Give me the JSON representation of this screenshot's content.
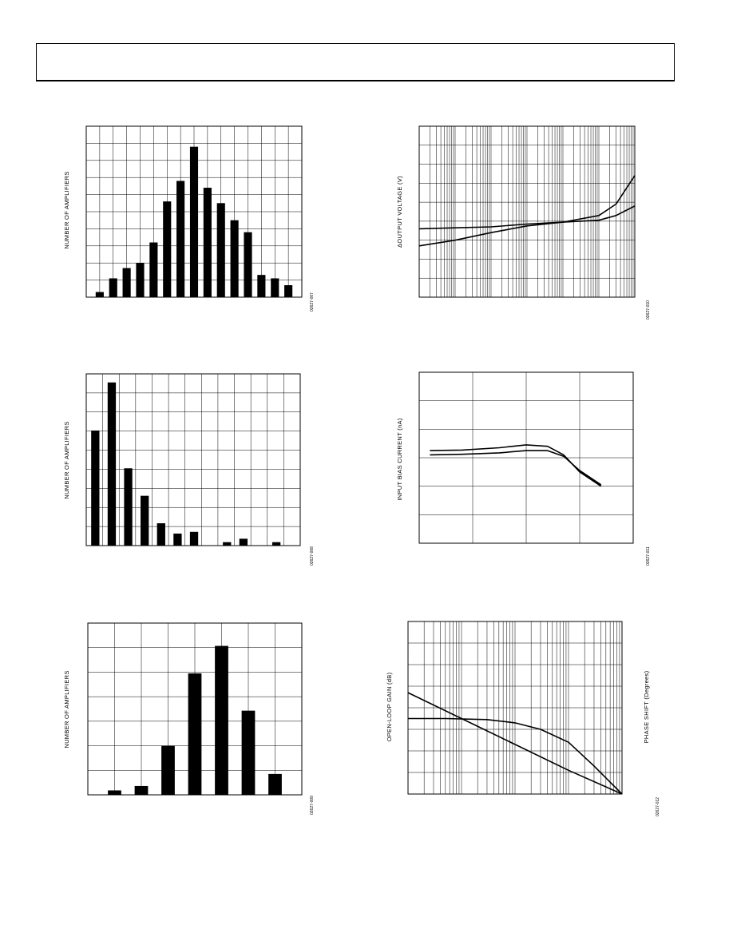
{
  "chart_data": [
    {
      "id": "hist1",
      "type": "bar",
      "ylabel": "NUMBER OF AMPLIFIERS",
      "fig_id": "02627-007",
      "values": [
        3,
        11,
        17,
        20,
        32,
        56,
        68,
        88,
        64,
        55,
        45,
        38,
        13,
        11,
        7
      ],
      "ylim": [
        0,
        100
      ],
      "n_x_grid": 16,
      "n_y_grid": 10
    },
    {
      "id": "hist2",
      "type": "bar",
      "ylabel": "NUMBER OF AMPLIFIERS",
      "fig_id": "02627-008",
      "values": [
        67,
        95,
        45,
        29,
        13,
        7,
        8,
        0,
        2,
        4,
        0,
        2
      ],
      "ylim": [
        0,
        100
      ],
      "n_x_grid": 13,
      "n_y_grid": 9
    },
    {
      "id": "hist3",
      "type": "bar",
      "ylabel": "NUMBER OF AMPLIFIERS",
      "fig_id": "02627-009",
      "values": [
        1.8,
        3.6,
        20,
        49.5,
        60.7,
        34.3,
        8.5
      ],
      "ylim": [
        0,
        70
      ],
      "n_x_grid": 8,
      "n_y_grid": 7
    },
    {
      "id": "dvout",
      "type": "line",
      "ylabel": "ΔOUTPUT VOLTAGE (V)",
      "fig_id": "02627-010",
      "x_scale": "log",
      "xlim": [
        1,
        1000000
      ],
      "ylim": [
        0,
        9
      ],
      "series": [
        {
          "x": [
            1,
            10,
            100,
            1000,
            10000,
            100000,
            300000,
            1000000
          ],
          "y": [
            3.6,
            3.65,
            3.7,
            3.85,
            3.95,
            4.3,
            4.9,
            6.4
          ]
        },
        {
          "x": [
            1,
            10,
            100,
            1000,
            10000,
            100000,
            300000,
            1000000
          ],
          "y": [
            2.7,
            3.0,
            3.4,
            3.75,
            3.95,
            4.05,
            4.3,
            4.8
          ]
        }
      ]
    },
    {
      "id": "ibias",
      "type": "line",
      "ylabel": "INPUT BIAS CURRENT (nA)",
      "fig_id": "02627-011",
      "xlim": [
        0,
        4
      ],
      "ylim": [
        0,
        6
      ],
      "series": [
        {
          "x": [
            0.2,
            0.8,
            1.5,
            2.0,
            2.4,
            2.7,
            3.0,
            3.4
          ],
          "y": [
            3.25,
            3.27,
            3.35,
            3.45,
            3.4,
            3.1,
            2.5,
            2.0
          ]
        },
        {
          "x": [
            0.2,
            0.8,
            1.5,
            2.0,
            2.4,
            2.7,
            3.0,
            3.4
          ],
          "y": [
            3.1,
            3.12,
            3.17,
            3.25,
            3.25,
            3.05,
            2.55,
            2.05
          ]
        }
      ]
    },
    {
      "id": "olgain",
      "type": "line",
      "ylabel": "OPEN-LOOP GAIN (dB)",
      "y2label": "PHASE SHIFT (Degrees)",
      "fig_id": "02627-012",
      "x_scale": "log",
      "xlim": [
        1,
        10000
      ],
      "ylim": [
        0,
        8
      ],
      "series": [
        {
          "x": [
            1,
            10,
            100,
            1000,
            10000
          ],
          "y": [
            4.7,
            3.5,
            2.3,
            1.1,
            0
          ]
        },
        {
          "x": [
            1,
            5,
            30,
            100,
            300,
            1000,
            3000,
            10000
          ],
          "y": [
            3.5,
            3.5,
            3.45,
            3.3,
            3.0,
            2.4,
            1.3,
            0
          ]
        }
      ]
    }
  ]
}
